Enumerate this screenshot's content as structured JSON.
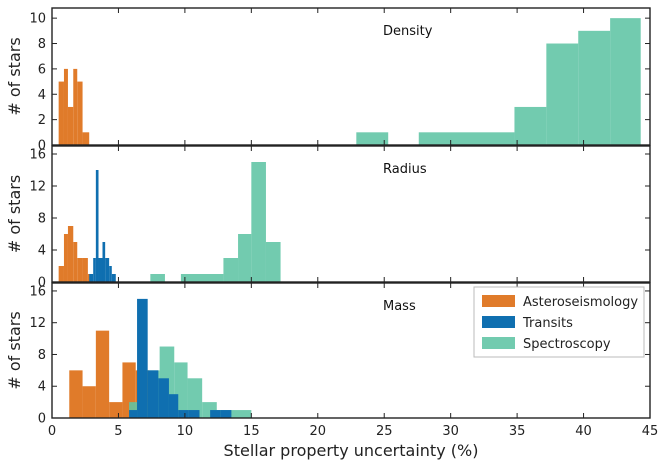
{
  "chart_data": {
    "type": "histogram",
    "xlabel": "Stellar property uncertainty (%)",
    "xlim": [
      0,
      45
    ],
    "xticks": [
      0,
      5,
      10,
      15,
      20,
      25,
      30,
      35,
      40,
      45
    ],
    "colors": {
      "Asteroseismology": "#e07b2a",
      "Transits": "#0f6fb0",
      "Spectroscopy": "#5ec4a4"
    },
    "legend": {
      "entries": [
        "Asteroseismology",
        "Transits",
        "Spectroscopy"
      ],
      "placement": "top-right of Mass panel"
    },
    "panels": [
      {
        "title": "Density",
        "ylabel": "# of stars",
        "ylim": [
          0,
          10.8
        ],
        "yticks": [
          0,
          2,
          4,
          6,
          8,
          10
        ],
        "series": [
          {
            "name": "Asteroseismology",
            "bins": [
              [
                0.5,
                0.9,
                5
              ],
              [
                0.9,
                1.2,
                6
              ],
              [
                1.2,
                1.6,
                3
              ],
              [
                1.6,
                1.9,
                6
              ],
              [
                1.9,
                2.3,
                5
              ],
              [
                2.3,
                2.8,
                1
              ]
            ]
          },
          {
            "name": "Spectroscopy",
            "bins": [
              [
                22.9,
                25.3,
                1
              ],
              [
                27.6,
                34.8,
                1
              ],
              [
                34.8,
                37.2,
                3
              ],
              [
                37.2,
                39.6,
                8
              ],
              [
                39.6,
                42.0,
                9
              ],
              [
                42.0,
                44.3,
                10
              ]
            ]
          }
        ]
      },
      {
        "title": "Radius",
        "ylabel": "# of stars",
        "ylim": [
          0,
          17
        ],
        "yticks": [
          0,
          4,
          8,
          12,
          16
        ],
        "series": [
          {
            "name": "Asteroseismology",
            "bins": [
              [
                0.5,
                0.9,
                2
              ],
              [
                0.9,
                1.2,
                6
              ],
              [
                1.2,
                1.6,
                7
              ],
              [
                1.6,
                1.9,
                5
              ],
              [
                1.9,
                2.3,
                3
              ],
              [
                2.3,
                2.7,
                3
              ],
              [
                2.7,
                3.0,
                1
              ]
            ]
          },
          {
            "name": "Transits",
            "bins": [
              [
                2.8,
                3.1,
                1
              ],
              [
                3.1,
                3.3,
                3
              ],
              [
                3.3,
                3.5,
                14
              ],
              [
                3.5,
                3.8,
                3
              ],
              [
                3.8,
                4.0,
                5
              ],
              [
                4.0,
                4.3,
                3
              ],
              [
                4.3,
                4.5,
                2
              ],
              [
                4.5,
                4.8,
                1
              ]
            ]
          },
          {
            "name": "Spectroscopy",
            "bins": [
              [
                7.4,
                8.5,
                1
              ],
              [
                9.7,
                12.9,
                1
              ],
              [
                12.9,
                14.0,
                3
              ],
              [
                14.0,
                15.0,
                6
              ],
              [
                15.0,
                16.1,
                15
              ],
              [
                16.1,
                17.2,
                5
              ]
            ]
          }
        ]
      },
      {
        "title": "Mass",
        "ylabel": "# of stars",
        "ylim": [
          0,
          17
        ],
        "yticks": [
          0,
          4,
          8,
          12,
          16
        ],
        "series": [
          {
            "name": "Asteroseismology",
            "bins": [
              [
                1.3,
                2.3,
                6
              ],
              [
                2.3,
                3.3,
                4
              ],
              [
                3.3,
                4.3,
                11
              ],
              [
                4.3,
                5.3,
                2
              ],
              [
                5.3,
                6.3,
                7
              ],
              [
                6.3,
                7.3,
                6
              ]
            ]
          },
          {
            "name": "Transits",
            "bins": [
              [
                5.8,
                6.4,
                1
              ],
              [
                6.4,
                7.2,
                15
              ],
              [
                7.2,
                8.0,
                6
              ],
              [
                8.0,
                8.8,
                5
              ],
              [
                8.8,
                9.5,
                3
              ],
              [
                9.5,
                10.3,
                1
              ],
              [
                10.3,
                11.1,
                1
              ],
              [
                11.1,
                11.9,
                0
              ],
              [
                11.9,
                12.7,
                1
              ],
              [
                12.7,
                13.5,
                1
              ]
            ]
          },
          {
            "name": "Spectroscopy",
            "bins": [
              [
                5.8,
                7.2,
                2
              ],
              [
                7.2,
                8.1,
                6
              ],
              [
                8.1,
                9.2,
                9
              ],
              [
                9.2,
                10.2,
                7
              ],
              [
                10.2,
                11.3,
                5
              ],
              [
                11.3,
                12.4,
                2
              ],
              [
                12.4,
                13.5,
                1
              ],
              [
                13.5,
                15.0,
                1
              ]
            ]
          }
        ]
      }
    ]
  }
}
